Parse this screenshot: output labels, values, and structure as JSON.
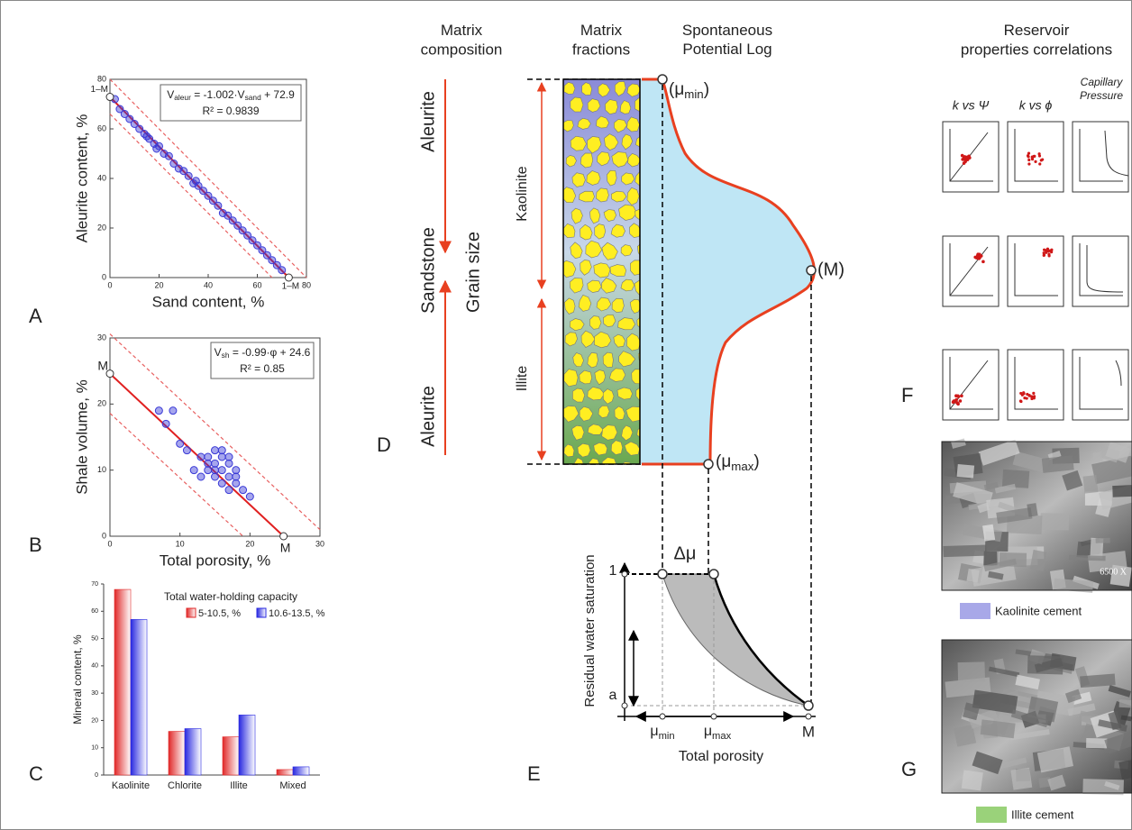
{
  "figure": {
    "panel_labels": [
      "A",
      "B",
      "C",
      "D",
      "E",
      "F",
      "G"
    ]
  },
  "chart_data": [
    {
      "type": "scatter",
      "x_label": "Sand content, %",
      "y_label": "Aleurite content, %",
      "xlim": [
        0,
        80
      ],
      "ylim": [
        0,
        80
      ],
      "xticks": [
        0,
        20,
        40,
        60,
        80
      ],
      "yticks": [
        0,
        20,
        40,
        60,
        80
      ],
      "equation": [
        "V",
        "aleur",
        " = -1.002·V",
        "sand",
        " + 72.9"
      ],
      "r_squared": "R² = 0.9839",
      "annotations": [
        "1–M",
        "1–M"
      ],
      "points": {
        "color": "#3a3ad6",
        "x": [
          2,
          4,
          6,
          8,
          10,
          12,
          14,
          15,
          16,
          18,
          19,
          20,
          22,
          24,
          26,
          28,
          30,
          32,
          34,
          35,
          36,
          38,
          40,
          42,
          44,
          46,
          48,
          50,
          52,
          54,
          56,
          58,
          60,
          62,
          64,
          66,
          68,
          70
        ],
        "y": [
          72,
          68,
          66,
          64,
          62,
          60,
          58,
          57,
          56,
          54,
          52,
          53,
          50,
          49,
          46,
          44,
          43,
          41,
          38,
          39,
          37,
          35,
          33,
          31,
          29,
          26,
          25,
          23,
          21,
          19,
          17,
          15,
          13,
          11,
          9,
          7,
          5,
          3
        ]
      },
      "lines": [
        {
          "x": [
            0,
            72.8
          ],
          "y": [
            72.9,
            0
          ],
          "color": "#e02020",
          "dashed": false
        },
        {
          "x": [
            0,
            80
          ],
          "y": [
            80,
            0
          ],
          "color": "#e86060",
          "dashed": true
        },
        {
          "x": [
            0,
            66
          ],
          "y": [
            66,
            0
          ],
          "color": "#e86060",
          "dashed": true
        }
      ]
    },
    {
      "type": "scatter",
      "x_label": "Total porosity, %",
      "y_label": "Shale volume, %",
      "xlim": [
        0,
        30
      ],
      "ylim": [
        0,
        30
      ],
      "xticks": [
        0,
        10,
        20,
        30
      ],
      "yticks": [
        0,
        10,
        20,
        30
      ],
      "equation": [
        "V",
        "sh",
        " = -0.99·φ + 24.6"
      ],
      "r_squared": "R² = 0.85",
      "annotations": [
        "M",
        "M"
      ],
      "points": {
        "color": "#3a3ad6",
        "x": [
          7,
          8,
          9,
          10,
          11,
          12,
          13,
          14,
          14,
          15,
          15,
          15,
          16,
          16,
          16,
          17,
          17,
          17,
          18,
          18,
          19,
          20,
          14,
          13,
          16,
          18,
          15,
          17
        ],
        "y": [
          19,
          17,
          19,
          14,
          13,
          10,
          12,
          10,
          12,
          9,
          11,
          13,
          10,
          12,
          8,
          9,
          11,
          7,
          10,
          8,
          7,
          6,
          11,
          9,
          13,
          9,
          10,
          12
        ]
      },
      "lines": [
        {
          "x": [
            0,
            24.8
          ],
          "y": [
            24.6,
            0
          ],
          "color": "#e02020",
          "dashed": false
        },
        {
          "x": [
            0,
            30
          ],
          "y": [
            30.6,
            1
          ],
          "color": "#e86060",
          "dashed": true
        },
        {
          "x": [
            0,
            19
          ],
          "y": [
            18.6,
            0
          ],
          "color": "#e86060",
          "dashed": true
        }
      ]
    },
    {
      "type": "bar",
      "y_label": "Mineral content, %",
      "legend_title": "Total water-holding capacity",
      "categories": [
        "Kaolinite",
        "Chlorite",
        "Illite",
        "Mixed"
      ],
      "ylim": [
        0,
        70
      ],
      "yticks": [
        0,
        10,
        20,
        30,
        40,
        50,
        60,
        70
      ],
      "series": [
        {
          "name": "5-10.5, %",
          "color": "#e02828",
          "values": [
            68,
            16,
            14,
            2
          ]
        },
        {
          "name": "10.6-13.5, %",
          "color": "#2828e0",
          "values": [
            57,
            17,
            22,
            3
          ]
        }
      ]
    }
  ],
  "diagram_d": {
    "headers": [
      "Matrix composition",
      "Matrix fractions",
      "Spontaneous Potential Log"
    ],
    "composition": [
      "Aleurite",
      "Sandstone",
      "Aleurite"
    ],
    "grain_size": "Grain size",
    "cements": [
      "Kaolinite",
      "Illite"
    ],
    "mu_min": [
      "(μ",
      "min",
      ")"
    ],
    "m_point": "(M)",
    "mu_max": [
      "(μ",
      "max",
      ")"
    ]
  },
  "diagram_e": {
    "delta": "Δμ",
    "y_label": "Residual water saturation",
    "y_one": "1",
    "y_a": "a",
    "mu_min": [
      "μ",
      "min"
    ],
    "mu_max": [
      "μ",
      "max"
    ],
    "m_point": "M",
    "x_label": "Total porosity"
  },
  "panel_f": {
    "title": "Reservoir properties correlations",
    "columns": [
      "k vs Ψ",
      "k vs ϕ",
      "Capillary Pressure"
    ]
  },
  "panel_g": {
    "magnification": "6500 X",
    "captions": [
      "Kaolinite cement",
      "Illite cement"
    ]
  }
}
